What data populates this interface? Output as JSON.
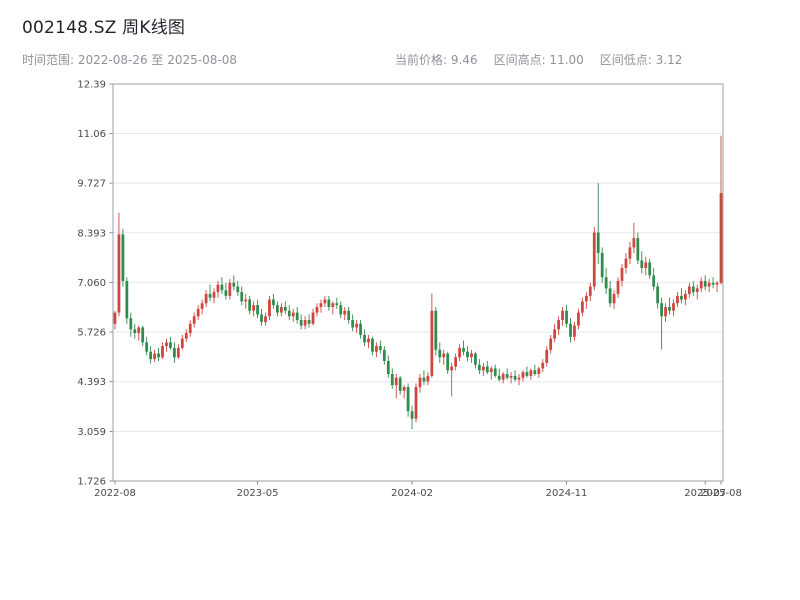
{
  "header": {
    "title": "002148.SZ 周K线图",
    "range_label": "时间范围: 2022-08-26 至 2025-08-08",
    "stats": {
      "current": "当前价格: 9.46",
      "high": "区间高点: 11.00",
      "low": "区间低点: 3.12"
    }
  },
  "chart_data": {
    "type": "candlestick",
    "title": "002148.SZ 周K线图",
    "symbol": "002148.SZ",
    "interval": "weekly",
    "current_price": 9.46,
    "range_high": 11.0,
    "range_low": 3.12,
    "date_start": "2022-08-26",
    "date_end": "2025-08-08",
    "grid": true,
    "up_color": "#d0453e",
    "down_color": "#2f8b4e",
    "axis_color": "#9aa0a6",
    "grid_color": "#e8e8ec",
    "tick_label_color": "#4a4a4a",
    "y_range": [
      1.726,
      12.39
    ],
    "y_ticks": [
      {
        "label": "12.39",
        "value": 12.39
      },
      {
        "label": "11.06",
        "value": 11.06
      },
      {
        "label": "9.727",
        "value": 9.727
      },
      {
        "label": "8.393",
        "value": 8.393
      },
      {
        "label": "7.060",
        "value": 7.06
      },
      {
        "label": "5.726",
        "value": 5.726
      },
      {
        "label": "4.393",
        "value": 4.393
      },
      {
        "label": "3.059",
        "value": 3.059
      },
      {
        "label": "1.726",
        "value": 1.726
      }
    ],
    "x_ticks": [
      {
        "label": "2022-08",
        "week": 0
      },
      {
        "label": "2023-05",
        "week": 36
      },
      {
        "label": "2024-02",
        "week": 75
      },
      {
        "label": "2024-11",
        "week": 114
      },
      {
        "label": "2025-07",
        "week": 149
      },
      {
        "label": "2025-08",
        "week": 153
      }
    ],
    "ohlc_order": [
      "open",
      "high",
      "low",
      "close"
    ],
    "candles": [
      [
        5.95,
        6.3,
        5.8,
        6.25
      ],
      [
        6.25,
        8.93,
        6.15,
        8.35
      ],
      [
        8.35,
        8.5,
        6.95,
        7.1
      ],
      [
        7.1,
        7.2,
        5.95,
        6.1
      ],
      [
        6.1,
        6.25,
        5.6,
        5.8
      ],
      [
        5.8,
        5.95,
        5.55,
        5.7
      ],
      [
        5.7,
        5.9,
        5.5,
        5.85
      ],
      [
        5.85,
        5.9,
        5.35,
        5.45
      ],
      [
        5.45,
        5.6,
        5.1,
        5.2
      ],
      [
        5.2,
        5.35,
        4.88,
        5.0
      ],
      [
        5.0,
        5.25,
        4.92,
        5.15
      ],
      [
        5.15,
        5.3,
        4.95,
        5.05
      ],
      [
        5.05,
        5.45,
        5.0,
        5.35
      ],
      [
        5.35,
        5.55,
        5.2,
        5.45
      ],
      [
        5.45,
        5.6,
        5.25,
        5.3
      ],
      [
        5.3,
        5.45,
        4.9,
        5.05
      ],
      [
        5.05,
        5.4,
        5.0,
        5.3
      ],
      [
        5.3,
        5.65,
        5.25,
        5.55
      ],
      [
        5.55,
        5.8,
        5.45,
        5.7
      ],
      [
        5.7,
        6.05,
        5.6,
        5.95
      ],
      [
        5.95,
        6.25,
        5.85,
        6.15
      ],
      [
        6.15,
        6.45,
        6.05,
        6.35
      ],
      [
        6.35,
        6.6,
        6.2,
        6.5
      ],
      [
        6.5,
        6.85,
        6.4,
        6.75
      ],
      [
        6.75,
        7.0,
        6.55,
        6.65
      ],
      [
        6.65,
        6.9,
        6.5,
        6.8
      ],
      [
        6.8,
        7.1,
        6.65,
        7.0
      ],
      [
        7.0,
        7.2,
        6.75,
        6.85
      ],
      [
        6.85,
        7.05,
        6.6,
        6.7
      ],
      [
        6.7,
        7.15,
        6.6,
        7.05
      ],
      [
        7.05,
        7.25,
        6.85,
        6.95
      ],
      [
        6.95,
        7.1,
        6.7,
        6.8
      ],
      [
        6.8,
        6.95,
        6.45,
        6.55
      ],
      [
        6.55,
        6.75,
        6.35,
        6.6
      ],
      [
        6.6,
        6.7,
        6.2,
        6.3
      ],
      [
        6.3,
        6.55,
        6.15,
        6.45
      ],
      [
        6.45,
        6.6,
        6.1,
        6.2
      ],
      [
        6.2,
        6.35,
        5.9,
        6.0
      ],
      [
        6.0,
        6.25,
        5.9,
        6.15
      ],
      [
        6.15,
        6.7,
        6.05,
        6.6
      ],
      [
        6.6,
        6.75,
        6.35,
        6.45
      ],
      [
        6.45,
        6.55,
        6.15,
        6.25
      ],
      [
        6.25,
        6.5,
        6.15,
        6.4
      ],
      [
        6.4,
        6.55,
        6.2,
        6.3
      ],
      [
        6.3,
        6.45,
        6.05,
        6.15
      ],
      [
        6.15,
        6.35,
        6.0,
        6.25
      ],
      [
        6.25,
        6.4,
        5.95,
        6.05
      ],
      [
        6.05,
        6.2,
        5.8,
        5.9
      ],
      [
        5.9,
        6.15,
        5.8,
        6.05
      ],
      [
        6.05,
        6.2,
        5.85,
        5.95
      ],
      [
        5.95,
        6.35,
        5.9,
        6.25
      ],
      [
        6.25,
        6.5,
        6.15,
        6.4
      ],
      [
        6.4,
        6.6,
        6.25,
        6.5
      ],
      [
        6.5,
        6.7,
        6.4,
        6.6
      ],
      [
        6.6,
        6.7,
        6.3,
        6.4
      ],
      [
        6.4,
        6.55,
        6.2,
        6.5
      ],
      [
        6.5,
        6.65,
        6.35,
        6.45
      ],
      [
        6.45,
        6.55,
        6.1,
        6.2
      ],
      [
        6.2,
        6.4,
        6.05,
        6.3
      ],
      [
        6.3,
        6.4,
        5.95,
        6.05
      ],
      [
        6.05,
        6.2,
        5.75,
        5.85
      ],
      [
        5.85,
        6.05,
        5.7,
        5.95
      ],
      [
        5.95,
        6.05,
        5.55,
        5.65
      ],
      [
        5.65,
        5.8,
        5.35,
        5.45
      ],
      [
        5.45,
        5.65,
        5.3,
        5.55
      ],
      [
        5.55,
        5.6,
        5.1,
        5.2
      ],
      [
        5.2,
        5.45,
        5.05,
        5.35
      ],
      [
        5.35,
        5.5,
        5.15,
        5.25
      ],
      [
        5.25,
        5.35,
        4.85,
        4.95
      ],
      [
        4.95,
        5.1,
        4.5,
        4.6
      ],
      [
        4.6,
        4.75,
        4.2,
        4.3
      ],
      [
        4.3,
        4.6,
        3.95,
        4.5
      ],
      [
        4.5,
        4.55,
        4.05,
        4.15
      ],
      [
        4.15,
        4.3,
        3.95,
        4.25
      ],
      [
        4.25,
        4.35,
        3.45,
        3.6
      ],
      [
        3.6,
        3.75,
        3.12,
        3.4
      ],
      [
        3.4,
        4.35,
        3.3,
        4.25
      ],
      [
        4.25,
        4.6,
        4.1,
        4.5
      ],
      [
        4.5,
        4.7,
        4.3,
        4.4
      ],
      [
        4.4,
        4.65,
        4.3,
        4.55
      ],
      [
        4.55,
        6.76,
        4.5,
        6.3
      ],
      [
        6.3,
        6.4,
        5.1,
        5.25
      ],
      [
        5.25,
        5.45,
        4.9,
        5.05
      ],
      [
        5.05,
        5.25,
        4.85,
        5.15
      ],
      [
        5.15,
        5.2,
        4.6,
        4.7
      ],
      [
        4.7,
        4.9,
        4.0,
        4.8
      ],
      [
        4.8,
        5.15,
        4.7,
        5.05
      ],
      [
        5.05,
        5.4,
        4.95,
        5.3
      ],
      [
        5.3,
        5.5,
        5.1,
        5.2
      ],
      [
        5.2,
        5.35,
        4.95,
        5.05
      ],
      [
        5.05,
        5.25,
        4.9,
        5.15
      ],
      [
        5.15,
        5.2,
        4.75,
        4.85
      ],
      [
        4.85,
        5.0,
        4.6,
        4.7
      ],
      [
        4.7,
        4.9,
        4.55,
        4.8
      ],
      [
        4.8,
        4.95,
        4.6,
        4.65
      ],
      [
        4.65,
        4.8,
        4.45,
        4.75
      ],
      [
        4.75,
        4.85,
        4.5,
        4.55
      ],
      [
        4.55,
        4.75,
        4.4,
        4.45
      ],
      [
        4.45,
        4.65,
        4.35,
        4.6
      ],
      [
        4.6,
        4.75,
        4.45,
        4.5
      ],
      [
        4.5,
        4.65,
        4.35,
        4.55
      ],
      [
        4.55,
        4.7,
        4.4,
        4.45
      ],
      [
        4.45,
        4.6,
        4.3,
        4.5
      ],
      [
        4.5,
        4.7,
        4.4,
        4.65
      ],
      [
        4.65,
        4.8,
        4.5,
        4.55
      ],
      [
        4.55,
        4.75,
        4.45,
        4.7
      ],
      [
        4.7,
        4.85,
        4.55,
        4.6
      ],
      [
        4.6,
        4.8,
        4.5,
        4.75
      ],
      [
        4.75,
        5.0,
        4.65,
        4.9
      ],
      [
        4.9,
        5.35,
        4.8,
        5.25
      ],
      [
        5.25,
        5.65,
        5.15,
        5.55
      ],
      [
        5.55,
        5.95,
        5.45,
        5.8
      ],
      [
        5.8,
        6.15,
        5.65,
        6.05
      ],
      [
        6.05,
        6.4,
        5.9,
        6.3
      ],
      [
        6.3,
        6.45,
        5.85,
        5.95
      ],
      [
        5.95,
        6.1,
        5.45,
        5.6
      ],
      [
        5.6,
        6.0,
        5.5,
        5.9
      ],
      [
        5.9,
        6.35,
        5.8,
        6.25
      ],
      [
        6.25,
        6.65,
        6.15,
        6.55
      ],
      [
        6.55,
        6.8,
        6.35,
        6.7
      ],
      [
        6.7,
        7.05,
        6.55,
        6.95
      ],
      [
        6.95,
        8.55,
        6.85,
        8.4
      ],
      [
        8.4,
        9.73,
        7.55,
        7.85
      ],
      [
        7.85,
        8.0,
        7.05,
        7.2
      ],
      [
        7.2,
        7.45,
        6.75,
        6.9
      ],
      [
        6.9,
        7.1,
        6.4,
        6.5
      ],
      [
        6.5,
        6.85,
        6.35,
        6.75
      ],
      [
        6.75,
        7.2,
        6.65,
        7.1
      ],
      [
        7.1,
        7.55,
        6.95,
        7.45
      ],
      [
        7.45,
        7.85,
        7.3,
        7.7
      ],
      [
        7.7,
        8.15,
        7.55,
        8.0
      ],
      [
        8.0,
        8.66,
        7.85,
        8.25
      ],
      [
        8.25,
        8.4,
        7.55,
        7.65
      ],
      [
        7.65,
        7.9,
        7.3,
        7.45
      ],
      [
        7.45,
        7.75,
        7.25,
        7.6
      ],
      [
        7.6,
        7.7,
        7.15,
        7.25
      ],
      [
        7.25,
        7.45,
        6.85,
        6.95
      ],
      [
        6.95,
        7.05,
        6.35,
        6.5
      ],
      [
        6.5,
        6.65,
        5.26,
        6.15
      ],
      [
        6.15,
        6.5,
        6.0,
        6.4
      ],
      [
        6.4,
        6.65,
        6.2,
        6.3
      ],
      [
        6.3,
        6.6,
        6.15,
        6.5
      ],
      [
        6.5,
        6.8,
        6.4,
        6.7
      ],
      [
        6.7,
        6.9,
        6.5,
        6.6
      ],
      [
        6.6,
        6.85,
        6.45,
        6.75
      ],
      [
        6.75,
        7.05,
        6.65,
        6.95
      ],
      [
        6.95,
        7.1,
        6.7,
        6.8
      ],
      [
        6.8,
        7.0,
        6.6,
        6.9
      ],
      [
        6.9,
        7.2,
        6.8,
        7.1
      ],
      [
        7.1,
        7.25,
        6.85,
        6.95
      ],
      [
        6.95,
        7.15,
        6.8,
        7.05
      ],
      [
        7.05,
        7.2,
        6.9,
        7.0
      ],
      [
        7.0,
        7.1,
        6.8,
        7.05
      ],
      [
        7.05,
        11.0,
        7.0,
        9.46
      ]
    ]
  }
}
